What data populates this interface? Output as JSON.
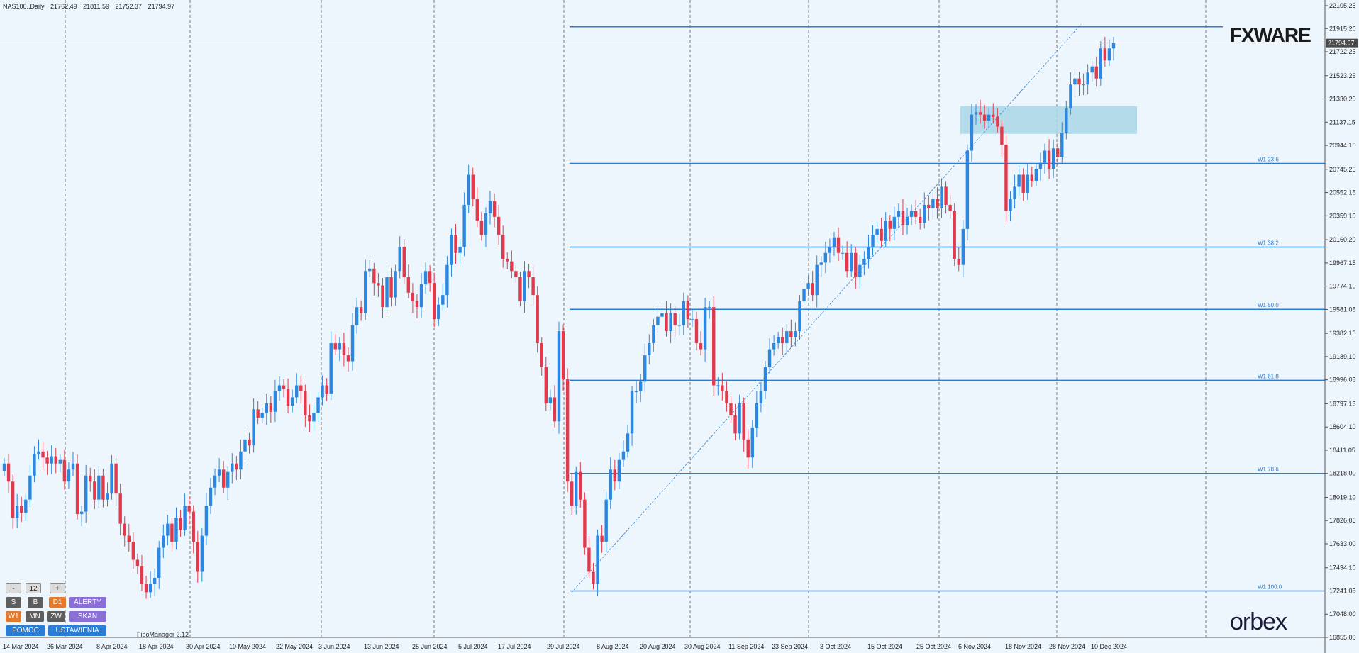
{
  "header": {
    "symbol": "NAS100..Daily",
    "open": "21762.49",
    "high": "21811.59",
    "low": "21752.37",
    "close": "21794.97"
  },
  "price_tag": "21794.97",
  "logos": {
    "top": "FXWARE",
    "bottom": "orbex"
  },
  "panel": {
    "minus": "-",
    "period": "12",
    "plus": "+",
    "row1": [
      "S",
      "B",
      "D1",
      "ALERTY"
    ],
    "row2": [
      "W1",
      "MN",
      "ZW",
      "SKAN"
    ],
    "row3": [
      "POMOC",
      "USTAWIENIA"
    ]
  },
  "fibo_manager": "FiboManager 2.12",
  "colors": {
    "bg": "#eef6fd",
    "bull": "#2b87e0",
    "bear": "#e23a4c",
    "fib": "#2b7cd3",
    "zone": "#a9d6e5"
  },
  "chart_data": {
    "type": "candlestick",
    "y_ticks": [
      "22105.25",
      "21915.20",
      "21722.25",
      "21523.25",
      "21330.20",
      "21137.15",
      "20944.10",
      "20745.25",
      "20552.15",
      "20359.10",
      "20160.20",
      "19967.15",
      "19774.10",
      "19581.05",
      "19382.15",
      "19189.10",
      "18996.05",
      "18797.15",
      "18604.10",
      "18411.05",
      "18218.00",
      "18019.10",
      "17826.05",
      "17633.00",
      "17434.10",
      "17241.05",
      "17048.00",
      "16855.00"
    ],
    "x_labels": [
      "14 Mar 2024",
      "26 Mar 2024",
      "8 Apr 2024",
      "18 Apr 2024",
      "30 Apr 2024",
      "10 May 2024",
      "22 May 2024",
      "3 Jun 2024",
      "13 Jun 2024",
      "25 Jun 2024",
      "5 Jul 2024",
      "17 Jul 2024",
      "29 Jul 2024",
      "8 Aug 2024",
      "20 Aug 2024",
      "30 Aug 2024",
      "11 Sep 2024",
      "23 Sep 2024",
      "3 Oct 2024",
      "15 Oct 2024",
      "25 Oct 2024",
      "6 Nov 2024",
      "18 Nov 2024",
      "28 Nov 2024",
      "10 Dec 2024"
    ],
    "fib_levels": [
      {
        "label": "W1 23.6",
        "value": 20794
      },
      {
        "label": "W1 38.2",
        "value": 20099
      },
      {
        "label": "W1 50.0",
        "value": 19582
      },
      {
        "label": "W1 61.8",
        "value": 18992
      },
      {
        "label": "W1 78.6",
        "value": 18218
      },
      {
        "label": "W1 100.0",
        "value": 17241
      }
    ],
    "high_line": 21930,
    "zone": {
      "from": "6 Nov 2024",
      "to": "18 Dec 2024",
      "low": 21040,
      "high": 21270
    },
    "trend": {
      "from": {
        "date": "5 Aug 2024",
        "value": 17230
      },
      "to": {
        "date": "4 Dec 2024",
        "value": 21950
      }
    },
    "closes": [
      18300,
      18150,
      17850,
      17950,
      17890,
      18000,
      18200,
      18380,
      18400,
      18350,
      18300,
      18360,
      18300,
      18330,
      18150,
      18250,
      18300,
      17880,
      17900,
      18200,
      18150,
      18000,
      18200,
      18000,
      18050,
      18300,
      18050,
      17800,
      17700,
      17650,
      17500,
      17450,
      17300,
      17230,
      17300,
      17350,
      17600,
      17700,
      17800,
      17650,
      17850,
      17750,
      17950,
      17900,
      17650,
      17400,
      17700,
      17950,
      18100,
      18200,
      18250,
      18100,
      18230,
      18300,
      18250,
      18400,
      18500,
      18450,
      18750,
      18680,
      18720,
      18800,
      18730,
      18900,
      18950,
      18920,
      18780,
      18850,
      18950,
      18900,
      18700,
      18650,
      18720,
      18850,
      18950,
      18880,
      19300,
      19250,
      19300,
      19200,
      19150,
      19450,
      19600,
      19550,
      19900,
      19920,
      19800,
      19780,
      19600,
      19850,
      19680,
      19900,
      20100,
      19850,
      19720,
      19650,
      19600,
      19790,
      19900,
      19800,
      19500,
      19620,
      19700,
      19950,
      20200,
      20050,
      20100,
      20450,
      20700,
      20500,
      20320,
      20200,
      20380,
      20480,
      20350,
      20200,
      20000,
      19980,
      19900,
      19850,
      19650,
      19900,
      19850,
      19700,
      19300,
      19100,
      18800,
      18850,
      18650,
      19400,
      19000,
      18150,
      17950,
      18230,
      18000,
      17600,
      17400,
      17300,
      17700,
      17650,
      18000,
      18250,
      18150,
      18330,
      18400,
      18550,
      18900,
      18900,
      18980,
      19200,
      19300,
      19450,
      19520,
      19550,
      19400,
      19550,
      19450,
      19450,
      19650,
      19500,
      19500,
      19300,
      19250,
      19600,
      19600,
      18950,
      18950,
      18900,
      18800,
      18700,
      18550,
      18800,
      18500,
      18350,
      18600,
      18800,
      18900,
      19100,
      19250,
      19300,
      19350,
      19300,
      19400,
      19350,
      19400,
      19650,
      19750,
      19800,
      19700,
      19950,
      19970,
      20050,
      20100,
      20180,
      20050,
      20050,
      19900,
      20050,
      19850,
      19950,
      20000,
      20100,
      20200,
      20250,
      20150,
      20320,
      20250,
      20350,
      20400,
      20280,
      20350,
      20400,
      20350,
      20300,
      20450,
      20420,
      20500,
      20420,
      20600,
      20450,
      20400,
      20000,
      19950,
      20250,
      20900,
      21200,
      21220,
      21200,
      21150,
      21200,
      21180,
      21100,
      20950,
      20400,
      20500,
      20600,
      20700,
      20550,
      20700,
      20650,
      20750,
      20800,
      20900,
      20750,
      20920,
      20850,
      21050,
      21250,
      21450,
      21500,
      21450,
      21450,
      21550,
      21600,
      21500,
      21750,
      21650,
      21750,
      21795
    ]
  }
}
